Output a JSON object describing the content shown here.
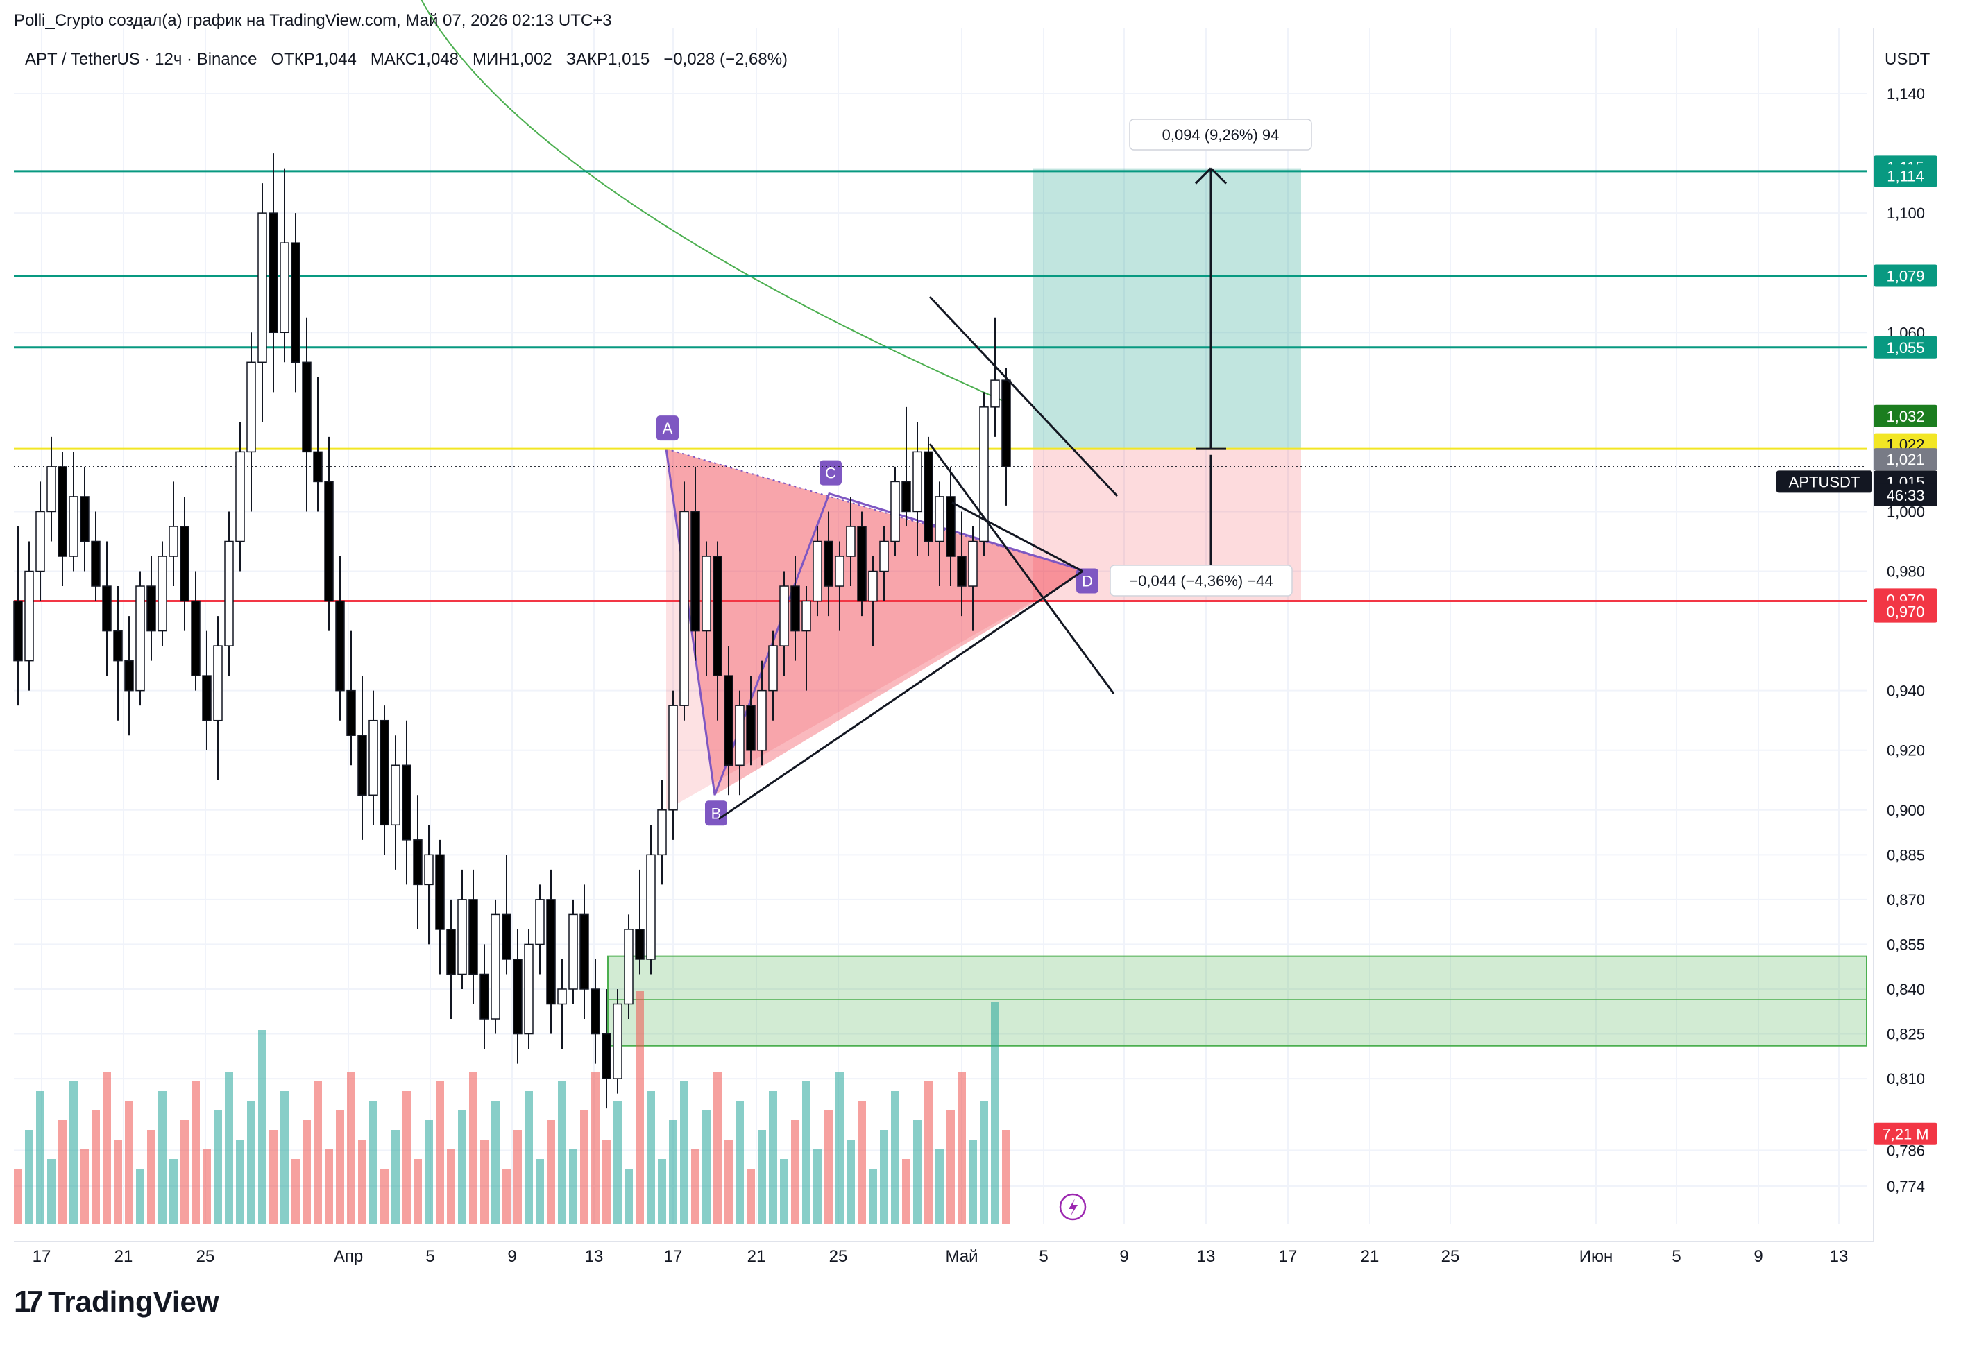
{
  "header": {
    "author_line": "Polli_Crypto создал(а) график на TradingView.com, Май 07, 2026 02:13 UTC+3",
    "symbol_line": "APT / TetherUS · 12ч · Binance",
    "open_label": "ОТКР",
    "open": "1,044",
    "high_label": "МАКС",
    "high": "1,048",
    "low_label": "МИН",
    "low": "1,002",
    "close_label": "ЗАКР",
    "close": "1,015",
    "change": "−0,028 (−2,68%)"
  },
  "price_axis": {
    "currency": "USDT",
    "ticks": [
      "1,140",
      "1,100",
      "1,060",
      "1,000",
      "0,980",
      "0,940",
      "0,920",
      "0,900",
      "0,885",
      "0,870",
      "0,855",
      "0,840",
      "0,825",
      "0,810",
      "0,786",
      "0,774"
    ]
  },
  "time_axis": {
    "ticks": [
      "17",
      "21",
      "25",
      "Апр",
      "5",
      "9",
      "13",
      "17",
      "21",
      "25",
      "Май",
      "5",
      "9",
      "13",
      "17",
      "21",
      "25",
      "Июн",
      "5",
      "9",
      "13"
    ]
  },
  "price_labels": {
    "l1115": "1,115",
    "l1114": "1,114",
    "l1079": "1,079",
    "l1055": "1,055",
    "l1032": "1,032",
    "l1022": "1,022",
    "l1021": "1,021",
    "symbol": "APTUSDT",
    "last": "1,015",
    "countdown": "46:33",
    "l0970a": "0,970",
    "l0970b": "0,970",
    "volume": "7,21 M"
  },
  "measure": {
    "up": "0,094 (9,26%) 94",
    "down": "−0,044 (−4,36%) −44"
  },
  "pattern_points": [
    "A",
    "B",
    "C",
    "D"
  ],
  "branding": {
    "name": "TradingView"
  },
  "colors": {
    "up": "#ffffff",
    "down": "#000000",
    "vol_up": "#26a69a",
    "vol_down": "#ef5350",
    "resistance": "#089981",
    "support": "#f23645",
    "entry": "#f2e625",
    "ma": "#4caf50",
    "pattern": "#7e57c2"
  },
  "chart_data": {
    "type": "candlestick",
    "symbol": "APT / TetherUS",
    "interval": "12ч",
    "ylim": [
      0.768,
      1.152
    ],
    "horizontal_levels": [
      1.114,
      1.079,
      1.055,
      1.021,
      0.97
    ],
    "demand_zone": [
      0.821,
      0.851
    ],
    "long_position": {
      "entry": 1.021,
      "target": 1.115,
      "stop": 0.97
    },
    "harmonic_points": {
      "A": 1.021,
      "B": 0.905,
      "C": 1.006,
      "D": 0.98
    },
    "last": {
      "open": 1.044,
      "high": 1.048,
      "low": 1.002,
      "close": 1.015
    },
    "candles": [
      [
        0.97,
        0.995,
        0.935,
        0.95
      ],
      [
        0.95,
        0.99,
        0.94,
        0.98
      ],
      [
        0.98,
        1.01,
        0.97,
        1.0
      ],
      [
        1.0,
        1.025,
        0.99,
        1.015
      ],
      [
        1.015,
        1.02,
        0.975,
        0.985
      ],
      [
        0.985,
        1.02,
        0.98,
        1.005
      ],
      [
        1.005,
        1.015,
        0.98,
        0.99
      ],
      [
        0.99,
        1.0,
        0.97,
        0.975
      ],
      [
        0.975,
        0.99,
        0.945,
        0.96
      ],
      [
        0.96,
        0.975,
        0.93,
        0.95
      ],
      [
        0.95,
        0.965,
        0.925,
        0.94
      ],
      [
        0.94,
        0.98,
        0.935,
        0.975
      ],
      [
        0.975,
        0.985,
        0.95,
        0.96
      ],
      [
        0.96,
        0.99,
        0.955,
        0.985
      ],
      [
        0.985,
        1.01,
        0.975,
        0.995
      ],
      [
        0.995,
        1.005,
        0.96,
        0.97
      ],
      [
        0.97,
        0.98,
        0.94,
        0.945
      ],
      [
        0.945,
        0.96,
        0.92,
        0.93
      ],
      [
        0.93,
        0.965,
        0.91,
        0.955
      ],
      [
        0.955,
        1.0,
        0.945,
        0.99
      ],
      [
        0.99,
        1.03,
        0.98,
        1.02
      ],
      [
        1.02,
        1.06,
        1.0,
        1.05
      ],
      [
        1.05,
        1.11,
        1.03,
        1.1
      ],
      [
        1.1,
        1.12,
        1.04,
        1.06
      ],
      [
        1.06,
        1.115,
        1.05,
        1.09
      ],
      [
        1.09,
        1.1,
        1.04,
        1.05
      ],
      [
        1.05,
        1.065,
        1.0,
        1.02
      ],
      [
        1.02,
        1.045,
        1.0,
        1.01
      ],
      [
        1.01,
        1.025,
        0.96,
        0.97
      ],
      [
        0.97,
        0.985,
        0.93,
        0.94
      ],
      [
        0.94,
        0.96,
        0.915,
        0.925
      ],
      [
        0.925,
        0.945,
        0.89,
        0.905
      ],
      [
        0.905,
        0.94,
        0.895,
        0.93
      ],
      [
        0.93,
        0.935,
        0.885,
        0.895
      ],
      [
        0.895,
        0.925,
        0.88,
        0.915
      ],
      [
        0.915,
        0.93,
        0.875,
        0.89
      ],
      [
        0.89,
        0.905,
        0.86,
        0.875
      ],
      [
        0.875,
        0.895,
        0.855,
        0.885
      ],
      [
        0.885,
        0.89,
        0.845,
        0.86
      ],
      [
        0.86,
        0.87,
        0.83,
        0.845
      ],
      [
        0.845,
        0.88,
        0.84,
        0.87
      ],
      [
        0.87,
        0.88,
        0.835,
        0.845
      ],
      [
        0.845,
        0.855,
        0.82,
        0.83
      ],
      [
        0.83,
        0.87,
        0.825,
        0.865
      ],
      [
        0.865,
        0.885,
        0.845,
        0.85
      ],
      [
        0.85,
        0.86,
        0.815,
        0.825
      ],
      [
        0.825,
        0.86,
        0.82,
        0.855
      ],
      [
        0.855,
        0.875,
        0.845,
        0.87
      ],
      [
        0.87,
        0.88,
        0.825,
        0.835
      ],
      [
        0.835,
        0.85,
        0.82,
        0.84
      ],
      [
        0.84,
        0.87,
        0.835,
        0.865
      ],
      [
        0.865,
        0.875,
        0.83,
        0.84
      ],
      [
        0.84,
        0.85,
        0.815,
        0.825
      ],
      [
        0.825,
        0.84,
        0.8,
        0.81
      ],
      [
        0.81,
        0.84,
        0.805,
        0.835
      ],
      [
        0.835,
        0.865,
        0.83,
        0.86
      ],
      [
        0.86,
        0.88,
        0.845,
        0.85
      ],
      [
        0.85,
        0.895,
        0.845,
        0.885
      ],
      [
        0.885,
        0.91,
        0.875,
        0.9
      ],
      [
        0.9,
        0.94,
        0.89,
        0.935
      ],
      [
        0.935,
        1.01,
        0.93,
        1.0
      ],
      [
        1.0,
        1.015,
        0.95,
        0.96
      ],
      [
        0.96,
        0.99,
        0.945,
        0.985
      ],
      [
        0.985,
        0.99,
        0.93,
        0.945
      ],
      [
        0.945,
        0.955,
        0.905,
        0.915
      ],
      [
        0.915,
        0.94,
        0.905,
        0.935
      ],
      [
        0.935,
        0.945,
        0.915,
        0.92
      ],
      [
        0.92,
        0.95,
        0.915,
        0.94
      ],
      [
        0.94,
        0.96,
        0.93,
        0.955
      ],
      [
        0.955,
        0.98,
        0.945,
        0.975
      ],
      [
        0.975,
        0.985,
        0.95,
        0.96
      ],
      [
        0.96,
        0.975,
        0.94,
        0.97
      ],
      [
        0.97,
        0.995,
        0.965,
        0.99
      ],
      [
        0.99,
        1.0,
        0.965,
        0.975
      ],
      [
        0.975,
        0.99,
        0.96,
        0.985
      ],
      [
        0.985,
        1.005,
        0.975,
        0.995
      ],
      [
        0.995,
        1.0,
        0.965,
        0.97
      ],
      [
        0.97,
        0.985,
        0.955,
        0.98
      ],
      [
        0.98,
        0.995,
        0.97,
        0.99
      ],
      [
        0.99,
        1.015,
        0.985,
        1.01
      ],
      [
        1.01,
        1.035,
        0.995,
        1.0
      ],
      [
        1.0,
        1.03,
        0.985,
        1.02
      ],
      [
        1.02,
        1.025,
        0.985,
        0.99
      ],
      [
        0.99,
        1.01,
        0.975,
        1.005
      ],
      [
        1.005,
        1.015,
        0.975,
        0.985
      ],
      [
        0.985,
        1.0,
        0.965,
        0.975
      ],
      [
        0.975,
        0.995,
        0.96,
        0.99
      ],
      [
        0.99,
        1.04,
        0.985,
        1.035
      ],
      [
        1.035,
        1.065,
        1.025,
        1.044
      ],
      [
        1.044,
        1.048,
        1.002,
        1.015
      ]
    ],
    "volume_max_label": "7,21 M"
  }
}
